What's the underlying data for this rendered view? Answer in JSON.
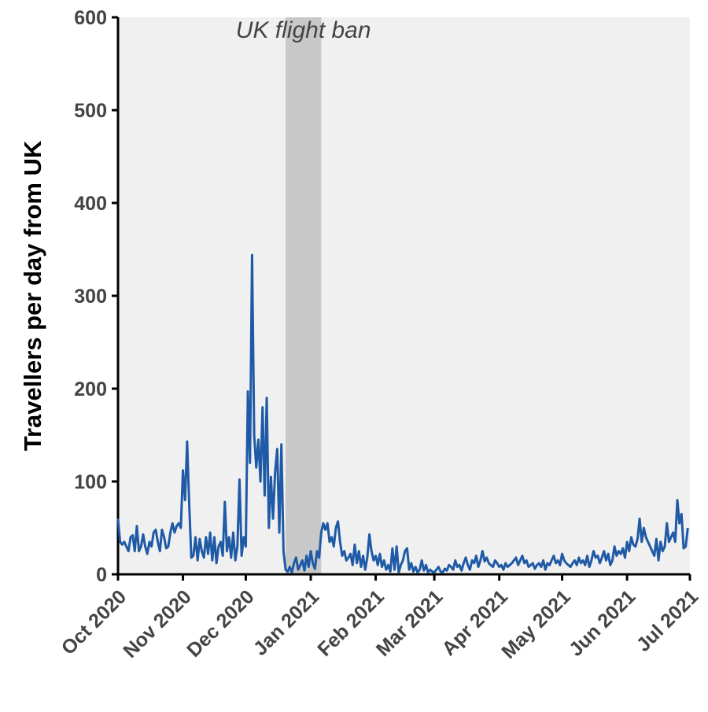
{
  "chart_data": {
    "type": "line",
    "ylabel": "Travellers per day from UK",
    "color": "#1f5aa6",
    "background": "#f0f0f0",
    "xlim": [
      0,
      273
    ],
    "xticks": [
      {
        "value": 0,
        "label": "Oct 2020"
      },
      {
        "value": 31,
        "label": "Nov 2020"
      },
      {
        "value": 61,
        "label": "Dec 2020"
      },
      {
        "value": 92,
        "label": "Jan 2021"
      },
      {
        "value": 123,
        "label": "Feb 2021"
      },
      {
        "value": 151,
        "label": "Mar 2021"
      },
      {
        "value": 182,
        "label": "Apr 2021"
      },
      {
        "value": 212,
        "label": "May 2021"
      },
      {
        "value": 243,
        "label": "Jun 2021"
      },
      {
        "value": 273,
        "label": "Jul 2021"
      }
    ],
    "ylim": [
      0,
      600
    ],
    "yticks": [
      0,
      100,
      200,
      300,
      400,
      500,
      600
    ],
    "shade": {
      "start": 80,
      "end": 97,
      "label": "UK flight ban",
      "color": "#c8c8c8"
    },
    "x": [
      0,
      1,
      2,
      3,
      4,
      5,
      6,
      7,
      8,
      9,
      10,
      11,
      12,
      13,
      14,
      15,
      16,
      17,
      18,
      19,
      20,
      21,
      22,
      23,
      24,
      25,
      26,
      27,
      28,
      29,
      30,
      31,
      32,
      33,
      34,
      35,
      36,
      37,
      38,
      39,
      40,
      41,
      42,
      43,
      44,
      45,
      46,
      47,
      48,
      49,
      50,
      51,
      52,
      53,
      54,
      55,
      56,
      57,
      58,
      59,
      60,
      61,
      62,
      63,
      64,
      65,
      66,
      67,
      68,
      69,
      70,
      71,
      72,
      73,
      74,
      75,
      76,
      77,
      78,
      79,
      80,
      81,
      82,
      83,
      84,
      85,
      86,
      87,
      88,
      89,
      90,
      91,
      92,
      93,
      94,
      95,
      96,
      97,
      98,
      99,
      100,
      101,
      102,
      103,
      104,
      105,
      106,
      107,
      108,
      109,
      110,
      111,
      112,
      113,
      114,
      115,
      116,
      117,
      118,
      119,
      120,
      121,
      122,
      123,
      124,
      125,
      126,
      127,
      128,
      129,
      130,
      131,
      132,
      133,
      134,
      135,
      136,
      137,
      138,
      139,
      140,
      141,
      142,
      143,
      144,
      145,
      146,
      147,
      148,
      149,
      150,
      151,
      152,
      153,
      154,
      155,
      156,
      157,
      158,
      159,
      160,
      161,
      162,
      163,
      164,
      165,
      166,
      167,
      168,
      169,
      170,
      171,
      172,
      173,
      174,
      175,
      176,
      177,
      178,
      179,
      180,
      181,
      182,
      183,
      184,
      185,
      186,
      187,
      188,
      189,
      190,
      191,
      192,
      193,
      194,
      195,
      196,
      197,
      198,
      199,
      200,
      201,
      202,
      203,
      204,
      205,
      206,
      207,
      208,
      209,
      210,
      211,
      212,
      213,
      214,
      215,
      216,
      217,
      218,
      219,
      220,
      221,
      222,
      223,
      224,
      225,
      226,
      227,
      228,
      229,
      230,
      231,
      232,
      233,
      234,
      235,
      236,
      237,
      238,
      239,
      240,
      241,
      242,
      243,
      244,
      245,
      246,
      247,
      248,
      249,
      250,
      251,
      252,
      253,
      254,
      255,
      256,
      257,
      258,
      259,
      260,
      261,
      262,
      263,
      264,
      265,
      266,
      267,
      268,
      269,
      270,
      271,
      272
    ],
    "values": [
      60,
      35,
      32,
      35,
      30,
      25,
      40,
      42,
      25,
      52,
      25,
      30,
      43,
      30,
      22,
      35,
      30,
      45,
      48,
      35,
      25,
      48,
      40,
      28,
      30,
      45,
      55,
      45,
      52,
      55,
      50,
      112,
      80,
      143,
      75,
      18,
      20,
      40,
      15,
      38,
      25,
      18,
      40,
      22,
      45,
      15,
      40,
      12,
      30,
      35,
      20,
      78,
      25,
      40,
      18,
      45,
      15,
      30,
      102,
      20,
      40,
      30,
      197,
      120,
      344,
      150,
      115,
      145,
      100,
      180,
      85,
      190,
      50,
      105,
      60,
      110,
      135,
      45,
      140,
      25,
      5,
      3,
      8,
      2,
      12,
      18,
      5,
      10,
      15,
      4,
      20,
      8,
      25,
      12,
      6,
      25,
      18,
      45,
      55,
      48,
      55,
      35,
      40,
      30,
      50,
      57,
      35,
      20,
      25,
      15,
      18,
      22,
      10,
      32,
      12,
      25,
      8,
      20,
      5,
      18,
      43,
      25,
      15,
      20,
      10,
      22,
      8,
      15,
      5,
      10,
      3,
      28,
      5,
      30,
      2,
      10,
      15,
      25,
      28,
      5,
      12,
      3,
      8,
      2,
      5,
      15,
      4,
      10,
      2,
      5,
      3,
      2,
      5,
      8,
      3,
      2,
      6,
      4,
      10,
      8,
      5,
      15,
      8,
      10,
      4,
      12,
      18,
      10,
      5,
      15,
      12,
      20,
      8,
      15,
      25,
      14,
      18,
      12,
      10,
      8,
      15,
      12,
      8,
      10,
      5,
      12,
      8,
      10,
      12,
      15,
      18,
      10,
      15,
      20,
      12,
      15,
      8,
      10,
      12,
      6,
      10,
      12,
      8,
      15,
      5,
      12,
      10,
      15,
      20,
      12,
      15,
      10,
      22,
      15,
      12,
      10,
      8,
      12,
      15,
      10,
      18,
      12,
      15,
      10,
      20,
      8,
      15,
      25,
      18,
      20,
      12,
      18,
      25,
      15,
      22,
      10,
      15,
      30,
      20,
      25,
      22,
      28,
      18,
      35,
      25,
      40,
      32,
      30,
      38,
      60,
      35,
      50,
      40,
      35,
      30,
      25,
      20,
      38,
      15,
      35,
      25,
      30,
      55,
      35,
      40,
      45,
      35,
      80,
      55,
      65,
      28,
      30,
      50
    ]
  }
}
